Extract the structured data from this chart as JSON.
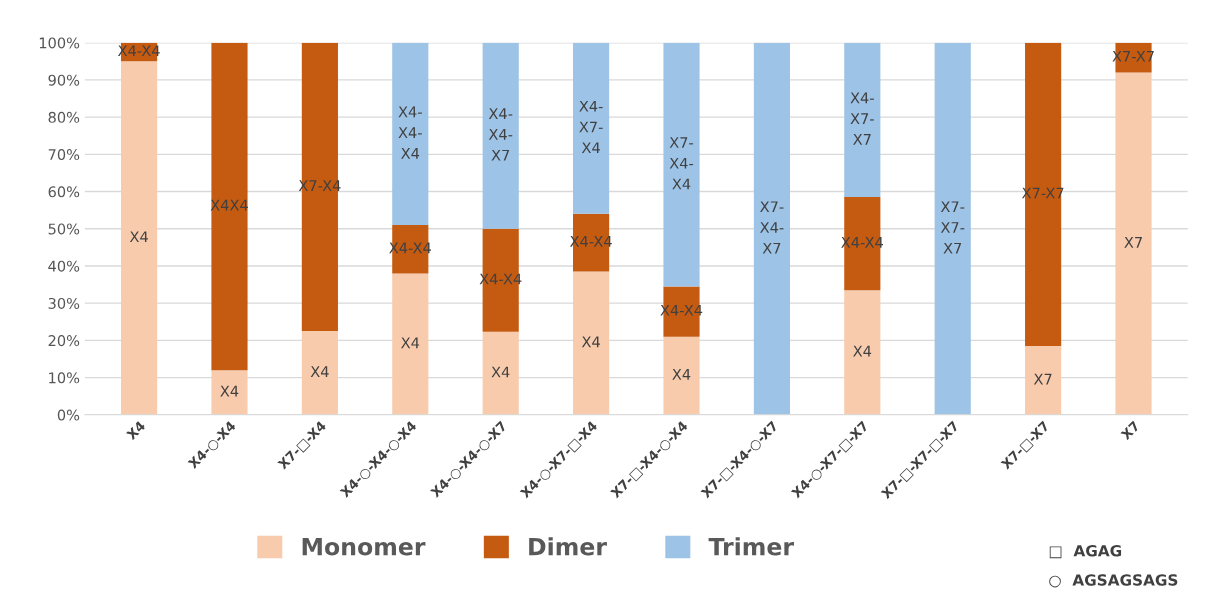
{
  "chart_data": {
    "type": "bar",
    "stacked": true,
    "categories": [
      "X4",
      "X4-○-X4",
      "X7-□-X4",
      "X4-○-X4-○-X4",
      "X4-○-X4-○-X7",
      "X4-○-X7-□-X4",
      "X7-□-X4-○-X4",
      "X7-□-X4-○-X7",
      "X4-○-X7-□-X7",
      "X7-□-X7-□-X7",
      "X7-□-X7",
      "X7"
    ],
    "series": [
      {
        "name": "Monomer",
        "color": "#f8cbad",
        "values": [
          95,
          12,
          22.5,
          38,
          22.3,
          38.5,
          21,
          0,
          33.5,
          0,
          18.5,
          92
        ],
        "value_labels": [
          "X4",
          "X4",
          "X4",
          "X4",
          "X4",
          "X4",
          "X4",
          null,
          "X4",
          null,
          "X7",
          "X7"
        ]
      },
      {
        "name": "Dimer",
        "color": "#c55a11",
        "values": [
          5,
          88,
          77.5,
          13,
          27.7,
          15.5,
          13.5,
          0,
          25,
          0,
          81.5,
          8
        ],
        "value_labels": [
          "X4-X4",
          "X4X4",
          "X7-X4",
          "X4-X4",
          "X4-X4",
          "X4-X4",
          "X4-X4",
          null,
          "X4-X4",
          null,
          "X7-X7",
          "X7-X7"
        ]
      },
      {
        "name": "Trimer",
        "color": "#9dc3e6",
        "values": [
          0,
          0,
          0,
          49,
          50,
          46,
          65.5,
          100,
          41.5,
          100,
          0,
          0
        ],
        "value_labels": [
          null,
          null,
          null,
          "X4-\nX4-\nX4",
          "X4-\nX4-\nX7",
          "X4-\nX7-\nX4",
          "X7-\nX4-\nX4",
          "X7-\nX4-\nX7",
          "X4-\nX7-\nX7",
          "X7-\nX7-\nX7",
          null,
          null
        ]
      }
    ],
    "ylim": [
      0,
      100
    ],
    "yticks": [
      {
        "value": 0,
        "label": "0%"
      },
      {
        "value": 10,
        "label": "10%"
      },
      {
        "value": 20,
        "label": "20%"
      },
      {
        "value": 30,
        "label": "30%"
      },
      {
        "value": 40,
        "label": "40%"
      },
      {
        "value": 50,
        "label": "50%"
      },
      {
        "value": 60,
        "label": "60%"
      },
      {
        "value": 70,
        "label": "70%"
      },
      {
        "value": 80,
        "label": "80%"
      },
      {
        "value": 90,
        "label": "90%"
      },
      {
        "value": 100,
        "label": "100%"
      }
    ],
    "grid": "y",
    "legend": "bottom",
    "annotations": [
      "□  AGAG",
      "○  AGSAGSAGS"
    ]
  }
}
